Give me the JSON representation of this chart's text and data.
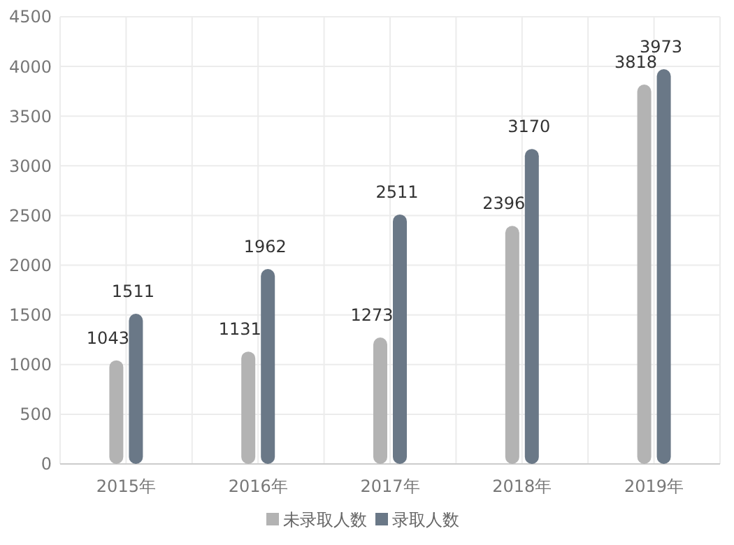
{
  "chart_data": {
    "type": "bar",
    "categories": [
      "2015年",
      "2016年",
      "2017年",
      "2018年",
      "2019年"
    ],
    "series": [
      {
        "name": "未录取人数",
        "color": "#b3b3b3",
        "values": [
          1043,
          1131,
          1273,
          2396,
          3818
        ]
      },
      {
        "name": "录取人数",
        "color": "#6a7887",
        "values": [
          1511,
          1962,
          2511,
          3170,
          3973
        ]
      }
    ],
    "ylim": [
      0,
      4500
    ],
    "yticks": [
      0,
      500,
      1000,
      1500,
      2000,
      2500,
      3000,
      3500,
      4000,
      4500
    ],
    "grid": true,
    "legend": "bottom",
    "data_labels": true
  }
}
